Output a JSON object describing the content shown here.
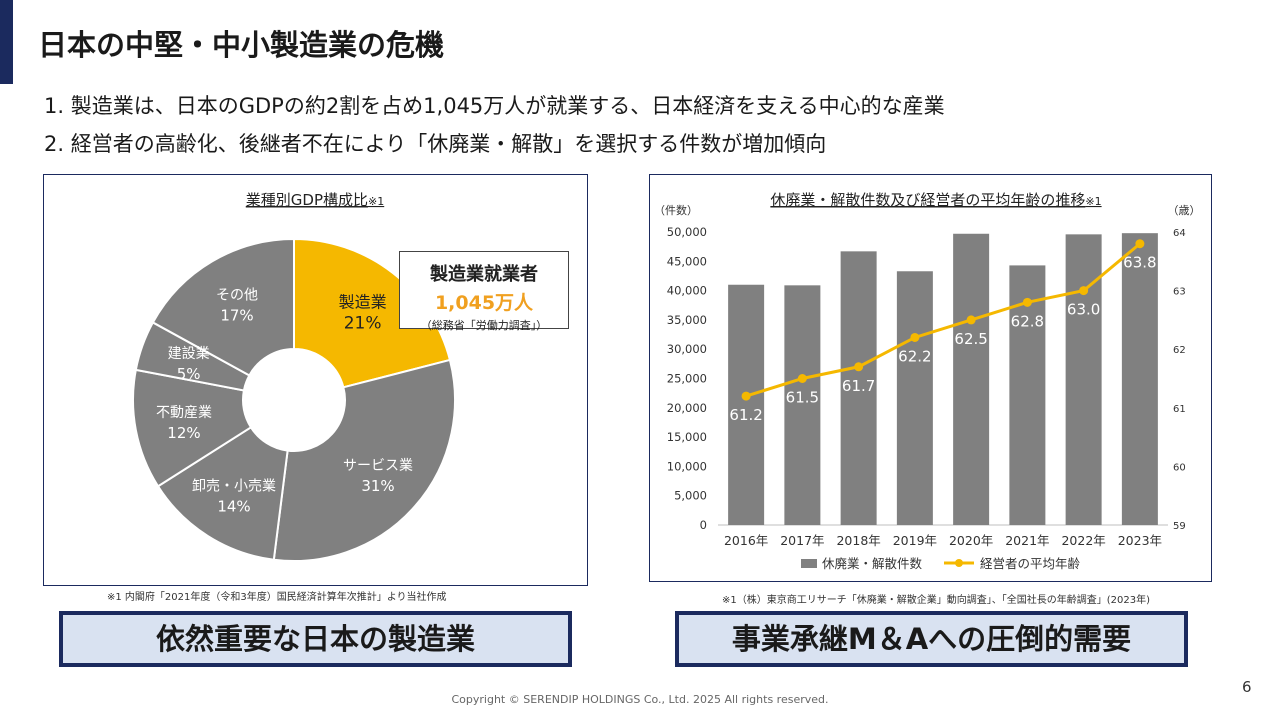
{
  "slide": {
    "title": "日本の中堅・中小製造業の危機",
    "bullets": [
      "1.  製造業は、日本のGDPの約2割を占め1,045万人が就業する、日本経済を支える中心的な産業",
      "2.  経営者の高齢化、後継者不在により「休廃業・解散」を選択する件数が増加傾向"
    ],
    "callout": {
      "line1": "製造業就業者",
      "line2": "1,045万人",
      "line3": "（総務省「労働力調査」）"
    },
    "note_left": "※1  内閣府「2021年度（令和3年度）国民経済計算年次推計」より当社作成",
    "note_right": "※1（株）東京商工リサーチ「休廃業・解散企業」動向調査」、「全国社長の年齢調査」(2023年)",
    "banner_left": "依然重要な日本の製造業",
    "banner_right": "事業承継M＆Aへの圧倒的需要",
    "copyright": "Copyright © SERENDIP HOLDINGS Co., Ltd.  2025 All rights reserved.",
    "page_number": "6"
  },
  "colors": {
    "navy": "#1b2a5e",
    "yellow": "#f5b800",
    "gray": "#808080",
    "orange": "#f0a020",
    "banner_bg": "#d9e2f1"
  },
  "chart_data": [
    {
      "type": "pie",
      "title": "業種別GDP構成比",
      "title_note": "※1",
      "donut": true,
      "slices": [
        {
          "label": "製造業",
          "value": 21,
          "value_label": "21%",
          "highlight": true
        },
        {
          "label": "サービス業",
          "value": 31,
          "value_label": "31%"
        },
        {
          "label": "卸売・小売業",
          "value": 14,
          "value_label": "14%"
        },
        {
          "label": "不動産業",
          "value": 12,
          "value_label": "12%"
        },
        {
          "label": "建設業",
          "value": 5,
          "value_label": "5%"
        },
        {
          "label": "その他",
          "value": 17,
          "value_label": "17%"
        }
      ]
    },
    {
      "type": "bar",
      "title": "休廃業・解散件数及び経営者の平均年齢の推移",
      "title_note": "※1",
      "categories": [
        "2016年",
        "2017年",
        "2018年",
        "2019年",
        "2020年",
        "2021年",
        "2022年",
        "2023年"
      ],
      "y_left_label": "（件数）",
      "y_right_label": "（歳）",
      "y_left_ticks": [
        "50,000",
        "45,000",
        "40,000",
        "35,000",
        "30,000",
        "25,000",
        "20,000",
        "15,000",
        "10,000",
        "5,000",
        "0"
      ],
      "y_right_ticks": [
        "64",
        "63",
        "62",
        "61",
        "60",
        "59"
      ],
      "ylim_left": [
        0,
        50000
      ],
      "ylim_right": [
        59,
        64
      ],
      "grid": false,
      "legend_position": "bottom",
      "series": [
        {
          "name": "休廃業・解散件数",
          "kind": "bar",
          "axis": "left",
          "values": [
            41000,
            40900,
            46700,
            43300,
            49700,
            44300,
            49600,
            49800
          ]
        },
        {
          "name": "経営者の平均年齢",
          "kind": "line",
          "axis": "right",
          "values": [
            61.2,
            61.5,
            61.7,
            62.2,
            62.5,
            62.8,
            63.0,
            63.8
          ],
          "value_labels": [
            "61.2",
            "61.5",
            "61.7",
            "62.2",
            "62.5",
            "62.8",
            "63.0",
            "63.8"
          ]
        }
      ]
    }
  ]
}
